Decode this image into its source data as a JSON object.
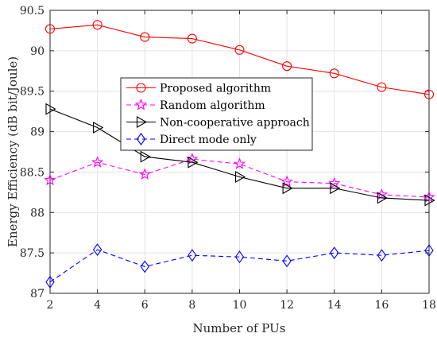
{
  "chart_data": {
    "type": "line",
    "x": [
      2,
      4,
      6,
      8,
      10,
      12,
      14,
      16,
      18
    ],
    "xlabel": "Number of PUs",
    "ylabel": "Energy Efficiency (dB bit/Joule)",
    "xlim": [
      2,
      18
    ],
    "ylim": [
      87,
      90.5
    ],
    "xticks": [
      "2",
      "4",
      "6",
      "8",
      "10",
      "12",
      "14",
      "16",
      "18"
    ],
    "yticks": [
      "87",
      "87.5",
      "88",
      "88.5",
      "89",
      "89.5",
      "90",
      "90.5"
    ],
    "grid": true,
    "legend_position": "center",
    "series": [
      {
        "name": "Proposed algorithm",
        "values": [
          90.27,
          90.32,
          90.17,
          90.15,
          90.01,
          89.81,
          89.72,
          89.55,
          89.46
        ],
        "color": "#ff0000",
        "marker": "circle",
        "line_style": "solid"
      },
      {
        "name": "Random algorithm",
        "values": [
          88.4,
          88.62,
          88.47,
          88.66,
          88.6,
          88.38,
          88.36,
          88.22,
          88.19
        ],
        "color": "#ff00ff",
        "marker": "star",
        "line_style": "dashed"
      },
      {
        "name": "Non-cooperative approach",
        "values": [
          89.28,
          89.05,
          88.69,
          88.62,
          88.44,
          88.3,
          88.3,
          88.18,
          88.15
        ],
        "color": "#000000",
        "marker": "triangle-right",
        "line_style": "solid"
      },
      {
        "name": "Direct mode only",
        "values": [
          87.14,
          87.54,
          87.33,
          87.47,
          87.45,
          87.4,
          87.5,
          87.47,
          87.53
        ],
        "color": "#0000ff",
        "marker": "diamond",
        "line_style": "dashed"
      }
    ]
  }
}
